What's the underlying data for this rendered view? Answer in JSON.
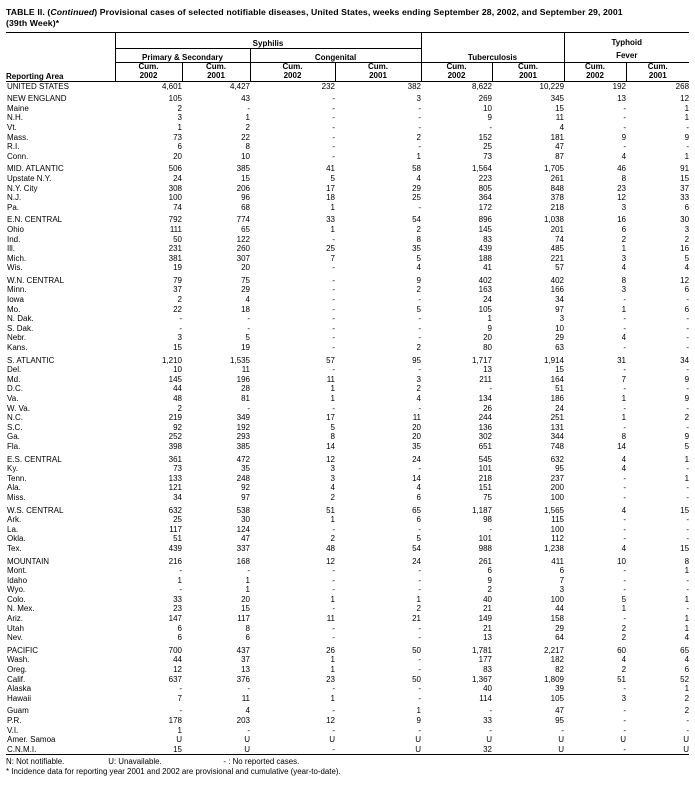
{
  "title": {
    "prefix": "TABLE II. (",
    "continued": "Continued",
    "suffix": ") Provisional cases of selected notifiable diseases, United States, weeks ending September 28, 2002, and September 29, 2001",
    "line2": "(39th Week)*"
  },
  "header": {
    "reporting_area": "Reporting Area",
    "syphilis": "Syphilis",
    "primary_secondary": "Primary & Secondary",
    "congenital": "Congenital",
    "tuberculosis": "Tuberculosis",
    "typhoid_line1": "Typhoid",
    "typhoid_line2": "Fever",
    "cum": "Cum.",
    "year_2002": "2002",
    "year_2001": "2001"
  },
  "table": {
    "columns": [
      "Reporting Area",
      "Syphilis Primary & Secondary Cum. 2002",
      "Syphilis Primary & Secondary Cum. 2001",
      "Syphilis Congenital Cum. 2002",
      "Syphilis Congenital Cum. 2001",
      "Tuberculosis Cum. 2002",
      "Tuberculosis Cum. 2001",
      "Typhoid Fever Cum. 2002",
      "Typhoid Fever Cum. 2001"
    ],
    "rows": [
      {
        "area": "UNITED STATES",
        "gap": false,
        "values": [
          "4,601",
          "4,427",
          "232",
          "382",
          "8,622",
          "10,229",
          "192",
          "268"
        ]
      },
      {
        "area": "NEW ENGLAND",
        "gap": true,
        "values": [
          "105",
          "43",
          "-",
          "3",
          "269",
          "345",
          "13",
          "12"
        ]
      },
      {
        "area": "Maine",
        "gap": false,
        "values": [
          "2",
          "-",
          "-",
          "-",
          "10",
          "15",
          "-",
          "1"
        ]
      },
      {
        "area": "N.H.",
        "gap": false,
        "values": [
          "3",
          "1",
          "-",
          "-",
          "9",
          "11",
          "-",
          "1"
        ]
      },
      {
        "area": "Vt.",
        "gap": false,
        "values": [
          "1",
          "2",
          "-",
          "-",
          "-",
          "4",
          "-",
          "-"
        ]
      },
      {
        "area": "Mass.",
        "gap": false,
        "values": [
          "73",
          "22",
          "-",
          "2",
          "152",
          "181",
          "9",
          "9"
        ]
      },
      {
        "area": "R.I.",
        "gap": false,
        "values": [
          "6",
          "8",
          "-",
          "-",
          "25",
          "47",
          "-",
          "-"
        ]
      },
      {
        "area": "Conn.",
        "gap": false,
        "values": [
          "20",
          "10",
          "-",
          "1",
          "73",
          "87",
          "4",
          "1"
        ]
      },
      {
        "area": "MID. ATLANTIC",
        "gap": true,
        "values": [
          "506",
          "385",
          "41",
          "58",
          "1,564",
          "1,705",
          "46",
          "91"
        ]
      },
      {
        "area": "Upstate N.Y.",
        "gap": false,
        "values": [
          "24",
          "15",
          "5",
          "4",
          "223",
          "261",
          "8",
          "15"
        ]
      },
      {
        "area": "N.Y. City",
        "gap": false,
        "values": [
          "308",
          "206",
          "17",
          "29",
          "805",
          "848",
          "23",
          "37"
        ]
      },
      {
        "area": "N.J.",
        "gap": false,
        "values": [
          "100",
          "96",
          "18",
          "25",
          "364",
          "378",
          "12",
          "33"
        ]
      },
      {
        "area": "Pa.",
        "gap": false,
        "values": [
          "74",
          "68",
          "1",
          "-",
          "172",
          "218",
          "3",
          "6"
        ]
      },
      {
        "area": "E.N. CENTRAL",
        "gap": true,
        "values": [
          "792",
          "774",
          "33",
          "54",
          "896",
          "1,038",
          "16",
          "30"
        ]
      },
      {
        "area": "Ohio",
        "gap": false,
        "values": [
          "111",
          "65",
          "1",
          "2",
          "145",
          "201",
          "6",
          "3"
        ]
      },
      {
        "area": "Ind.",
        "gap": false,
        "values": [
          "50",
          "122",
          "-",
          "8",
          "83",
          "74",
          "2",
          "2"
        ]
      },
      {
        "area": "Ill.",
        "gap": false,
        "values": [
          "231",
          "260",
          "25",
          "35",
          "439",
          "485",
          "1",
          "16"
        ]
      },
      {
        "area": "Mich.",
        "gap": false,
        "values": [
          "381",
          "307",
          "7",
          "5",
          "188",
          "221",
          "3",
          "5"
        ]
      },
      {
        "area": "Wis.",
        "gap": false,
        "values": [
          "19",
          "20",
          "-",
          "4",
          "41",
          "57",
          "4",
          "4"
        ]
      },
      {
        "area": "W.N. CENTRAL",
        "gap": true,
        "values": [
          "79",
          "75",
          "-",
          "9",
          "402",
          "402",
          "8",
          "12"
        ]
      },
      {
        "area": "Minn.",
        "gap": false,
        "values": [
          "37",
          "29",
          "-",
          "2",
          "163",
          "166",
          "3",
          "6"
        ]
      },
      {
        "area": "Iowa",
        "gap": false,
        "values": [
          "2",
          "4",
          "-",
          "-",
          "24",
          "34",
          "-",
          "-"
        ]
      },
      {
        "area": "Mo.",
        "gap": false,
        "values": [
          "22",
          "18",
          "-",
          "5",
          "105",
          "97",
          "1",
          "6"
        ]
      },
      {
        "area": "N. Dak.",
        "gap": false,
        "values": [
          "-",
          "-",
          "-",
          "-",
          "1",
          "3",
          "-",
          "-"
        ]
      },
      {
        "area": "S. Dak.",
        "gap": false,
        "values": [
          "-",
          "-",
          "-",
          "-",
          "9",
          "10",
          "-",
          "-"
        ]
      },
      {
        "area": "Nebr.",
        "gap": false,
        "values": [
          "3",
          "5",
          "-",
          "-",
          "20",
          "29",
          "4",
          "-"
        ]
      },
      {
        "area": "Kans.",
        "gap": false,
        "values": [
          "15",
          "19",
          "-",
          "2",
          "80",
          "63",
          "-",
          "-"
        ]
      },
      {
        "area": "S. ATLANTIC",
        "gap": true,
        "values": [
          "1,210",
          "1,535",
          "57",
          "95",
          "1,717",
          "1,914",
          "31",
          "34"
        ]
      },
      {
        "area": "Del.",
        "gap": false,
        "values": [
          "10",
          "11",
          "-",
          "-",
          "13",
          "15",
          "-",
          "-"
        ]
      },
      {
        "area": "Md.",
        "gap": false,
        "values": [
          "145",
          "196",
          "11",
          "3",
          "211",
          "164",
          "7",
          "9"
        ]
      },
      {
        "area": "D.C.",
        "gap": false,
        "values": [
          "44",
          "28",
          "1",
          "2",
          "-",
          "51",
          "-",
          "-"
        ]
      },
      {
        "area": "Va.",
        "gap": false,
        "values": [
          "48",
          "81",
          "1",
          "4",
          "134",
          "186",
          "1",
          "9"
        ]
      },
      {
        "area": "W. Va.",
        "gap": false,
        "values": [
          "2",
          "-",
          "-",
          "-",
          "26",
          "24",
          "-",
          "-"
        ]
      },
      {
        "area": "N.C.",
        "gap": false,
        "values": [
          "219",
          "349",
          "17",
          "11",
          "244",
          "251",
          "1",
          "2"
        ]
      },
      {
        "area": "S.C.",
        "gap": false,
        "values": [
          "92",
          "192",
          "5",
          "20",
          "136",
          "131",
          "-",
          "-"
        ]
      },
      {
        "area": "Ga.",
        "gap": false,
        "values": [
          "252",
          "293",
          "8",
          "20",
          "302",
          "344",
          "8",
          "9"
        ]
      },
      {
        "area": "Fla.",
        "gap": false,
        "values": [
          "398",
          "385",
          "14",
          "35",
          "651",
          "748",
          "14",
          "5"
        ]
      },
      {
        "area": "E.S. CENTRAL",
        "gap": true,
        "values": [
          "361",
          "472",
          "12",
          "24",
          "545",
          "632",
          "4",
          "1"
        ]
      },
      {
        "area": "Ky.",
        "gap": false,
        "values": [
          "73",
          "35",
          "3",
          "-",
          "101",
          "95",
          "4",
          "-"
        ]
      },
      {
        "area": "Tenn.",
        "gap": false,
        "values": [
          "133",
          "248",
          "3",
          "14",
          "218",
          "237",
          "-",
          "1"
        ]
      },
      {
        "area": "Ala.",
        "gap": false,
        "values": [
          "121",
          "92",
          "4",
          "4",
          "151",
          "200",
          "-",
          "-"
        ]
      },
      {
        "area": "Miss.",
        "gap": false,
        "values": [
          "34",
          "97",
          "2",
          "6",
          "75",
          "100",
          "-",
          "-"
        ]
      },
      {
        "area": "W.S. CENTRAL",
        "gap": true,
        "values": [
          "632",
          "538",
          "51",
          "65",
          "1,187",
          "1,565",
          "4",
          "15"
        ]
      },
      {
        "area": "Ark.",
        "gap": false,
        "values": [
          "25",
          "30",
          "1",
          "6",
          "98",
          "115",
          "-",
          "-"
        ]
      },
      {
        "area": "La.",
        "gap": false,
        "values": [
          "117",
          "124",
          "-",
          "-",
          "-",
          "100",
          "-",
          "-"
        ]
      },
      {
        "area": "Okla.",
        "gap": false,
        "values": [
          "51",
          "47",
          "2",
          "5",
          "101",
          "112",
          "-",
          "-"
        ]
      },
      {
        "area": "Tex.",
        "gap": false,
        "values": [
          "439",
          "337",
          "48",
          "54",
          "988",
          "1,238",
          "4",
          "15"
        ]
      },
      {
        "area": "MOUNTAIN",
        "gap": true,
        "values": [
          "216",
          "168",
          "12",
          "24",
          "261",
          "411",
          "10",
          "8"
        ]
      },
      {
        "area": "Mont.",
        "gap": false,
        "values": [
          "-",
          "-",
          "-",
          "-",
          "6",
          "6",
          "-",
          "1"
        ]
      },
      {
        "area": "Idaho",
        "gap": false,
        "values": [
          "1",
          "1",
          "-",
          "-",
          "9",
          "7",
          "-",
          "-"
        ]
      },
      {
        "area": "Wyo.",
        "gap": false,
        "values": [
          "-",
          "1",
          "-",
          "-",
          "2",
          "3",
          "-",
          "-"
        ]
      },
      {
        "area": "Colo.",
        "gap": false,
        "values": [
          "33",
          "20",
          "1",
          "1",
          "40",
          "100",
          "5",
          "1"
        ]
      },
      {
        "area": "N. Mex.",
        "gap": false,
        "values": [
          "23",
          "15",
          "-",
          "2",
          "21",
          "44",
          "1",
          "-"
        ]
      },
      {
        "area": "Ariz.",
        "gap": false,
        "values": [
          "147",
          "117",
          "11",
          "21",
          "149",
          "158",
          "-",
          "1"
        ]
      },
      {
        "area": "Utah",
        "gap": false,
        "values": [
          "6",
          "8",
          "-",
          "-",
          "21",
          "29",
          "2",
          "1"
        ]
      },
      {
        "area": "Nev.",
        "gap": false,
        "values": [
          "6",
          "6",
          "-",
          "-",
          "13",
          "64",
          "2",
          "4"
        ]
      },
      {
        "area": "PACIFIC",
        "gap": true,
        "values": [
          "700",
          "437",
          "26",
          "50",
          "1,781",
          "2,217",
          "60",
          "65"
        ]
      },
      {
        "area": "Wash.",
        "gap": false,
        "values": [
          "44",
          "37",
          "1",
          "-",
          "177",
          "182",
          "4",
          "4"
        ]
      },
      {
        "area": "Oreg.",
        "gap": false,
        "values": [
          "12",
          "13",
          "1",
          "-",
          "83",
          "82",
          "2",
          "6"
        ]
      },
      {
        "area": "Calif.",
        "gap": false,
        "values": [
          "637",
          "376",
          "23",
          "50",
          "1,367",
          "1,809",
          "51",
          "52"
        ]
      },
      {
        "area": "Alaska",
        "gap": false,
        "values": [
          "-",
          "-",
          "-",
          "-",
          "40",
          "39",
          "-",
          "1"
        ]
      },
      {
        "area": "Hawaii",
        "gap": false,
        "values": [
          "7",
          "11",
          "1",
          "-",
          "114",
          "105",
          "3",
          "2"
        ]
      },
      {
        "area": "Guam",
        "gap": true,
        "values": [
          "-",
          "4",
          "-",
          "1",
          "-",
          "47",
          "-",
          "2"
        ]
      },
      {
        "area": "P.R.",
        "gap": false,
        "values": [
          "178",
          "203",
          "12",
          "9",
          "33",
          "95",
          "-",
          "-"
        ]
      },
      {
        "area": "V.I.",
        "gap": false,
        "values": [
          "1",
          "-",
          "-",
          "-",
          "-",
          "-",
          "-",
          "-"
        ]
      },
      {
        "area": "Amer. Samoa",
        "gap": false,
        "values": [
          "U",
          "U",
          "U",
          "U",
          "U",
          "U",
          "U",
          "U"
        ]
      },
      {
        "area": "C.N.M.I.",
        "gap": false,
        "values": [
          "15",
          "U",
          "-",
          "U",
          "32",
          "U",
          "-",
          "U"
        ]
      }
    ]
  },
  "footnotes": {
    "n": "N: Not notifiable.",
    "u": "U: Unavailable.",
    "dash": "- : No reported cases.",
    "asterisk": "* Incidence data for reporting year 2001 and 2002 are provisional and cumulative (year-to-date)."
  }
}
